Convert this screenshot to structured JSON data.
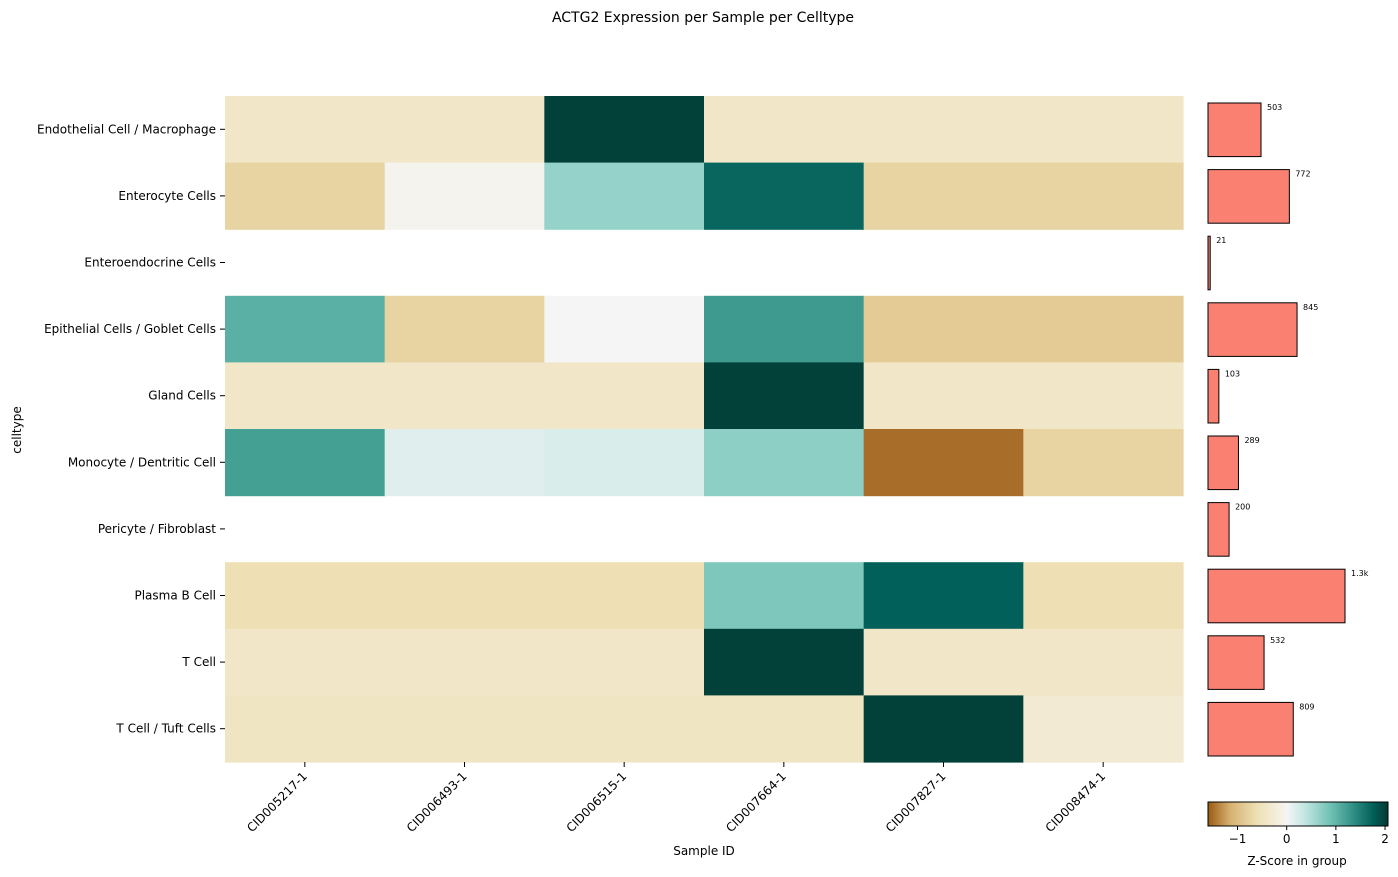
{
  "chart_data": {
    "type": "heatmap",
    "title": "ACTG2 Expression per Sample per Celltype",
    "xlabel": "Sample ID",
    "ylabel": "celltype",
    "samples": [
      "CID005217-1",
      "CID006493-1",
      "CID006515-1",
      "CID007664-1",
      "CID007827-1",
      "CID008474-1"
    ],
    "celltypes": [
      "Endothelial Cell / Macrophage",
      "Enterocyte Cells",
      "Enteroendocrine Cells",
      "Epithelial Cells / Goblet Cells",
      "Gland Cells",
      "Monocyte / Dentritic Cell",
      "Pericyte / Fibroblast",
      "Plasma B Cell",
      "T Cell",
      "T Cell / Tuft Cells"
    ],
    "zscores": [
      [
        -0.4,
        -0.4,
        2.0,
        -0.4,
        -0.4,
        -0.4
      ],
      [
        -0.75,
        -0.05,
        0.65,
        1.7,
        -0.75,
        -0.75
      ],
      [
        null,
        null,
        null,
        null,
        null,
        null
      ],
      [
        1.05,
        -0.75,
        0.0,
        1.25,
        -0.85,
        -0.85
      ],
      [
        -0.4,
        -0.4,
        -0.4,
        2.0,
        -0.4,
        -0.4
      ],
      [
        1.2,
        0.15,
        0.2,
        0.7,
        -1.5,
        -0.75
      ],
      [
        null,
        null,
        null,
        null,
        null,
        null
      ],
      [
        -0.6,
        -0.6,
        -0.6,
        0.8,
        1.75,
        -0.6
      ],
      [
        -0.4,
        -0.4,
        -0.4,
        2.0,
        -0.4,
        -0.4
      ],
      [
        -0.45,
        -0.45,
        -0.45,
        -0.45,
        2.0,
        -0.3
      ]
    ],
    "counts": {
      "values": [
        503,
        772,
        21,
        845,
        103,
        289,
        200,
        1300,
        532,
        809
      ],
      "labels": [
        "503",
        "772",
        "21",
        "845",
        "103",
        "289",
        "200",
        "1.3k",
        "532",
        "809"
      ],
      "max": 1300,
      "bar_color": "#fa8072"
    },
    "colorbar": {
      "label": "Z-Score in group",
      "range": [
        -1.6,
        2.06
      ],
      "ticks": [
        -1,
        0,
        1,
        2
      ],
      "tick_labels": [
        "−1",
        "0",
        "1",
        "2"
      ],
      "colormap": "BrBG",
      "stops": [
        {
          "v": -1.6,
          "c": "#9a5b14"
        },
        {
          "v": -1.15,
          "c": "#d7b171"
        },
        {
          "v": -0.6,
          "c": "#eee0b4"
        },
        {
          "v": -0.1,
          "c": "#f5f1e6"
        },
        {
          "v": 0.0,
          "c": "#f5f5f5"
        },
        {
          "v": 0.35,
          "c": "#c4e8e3"
        },
        {
          "v": 0.9,
          "c": "#6ec0b3"
        },
        {
          "v": 1.4,
          "c": "#2a8a80"
        },
        {
          "v": 1.75,
          "c": "#02605a"
        },
        {
          "v": 2.06,
          "c": "#013a32"
        }
      ]
    }
  }
}
